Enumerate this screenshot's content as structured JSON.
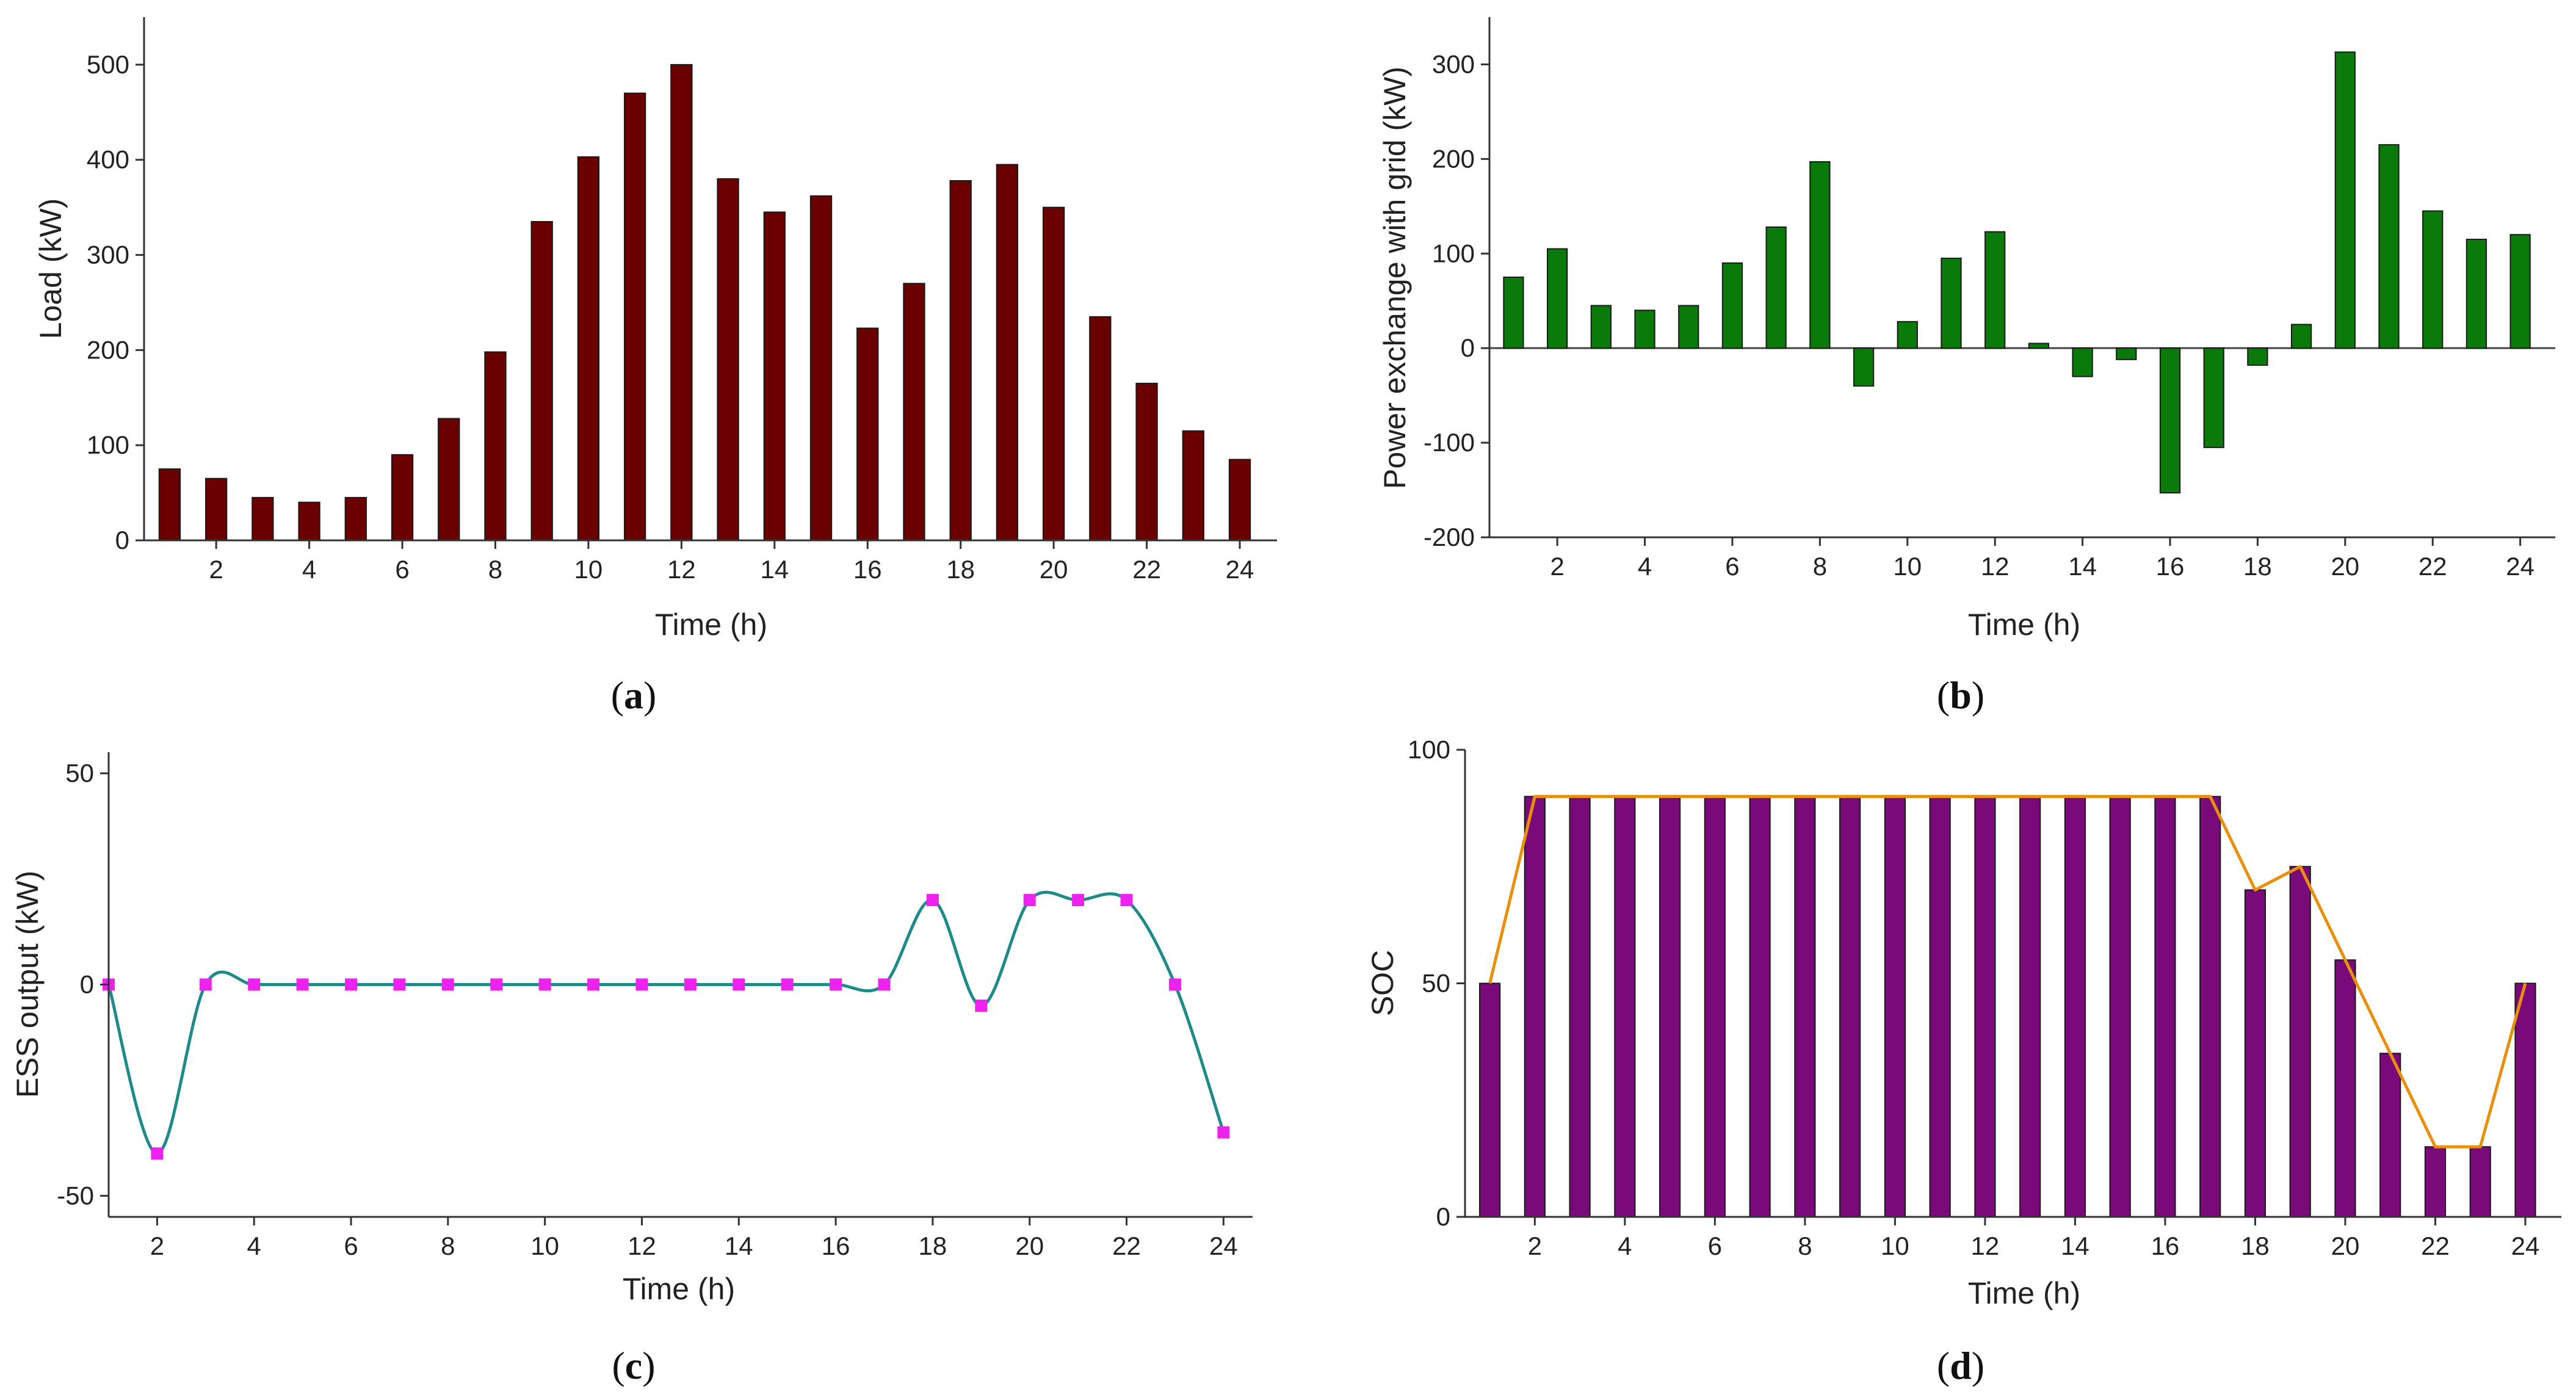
{
  "chart_data": [
    {
      "id": "a",
      "type": "bar",
      "caption_letter": "a",
      "title": "",
      "xlabel": "Time (h)",
      "ylabel": "Load (kW)",
      "categories": [
        1,
        2,
        3,
        4,
        5,
        6,
        7,
        8,
        9,
        10,
        11,
        12,
        13,
        14,
        15,
        16,
        17,
        18,
        19,
        20,
        21,
        22,
        23,
        24
      ],
      "values": [
        75,
        65,
        45,
        40,
        45,
        90,
        128,
        198,
        335,
        403,
        470,
        500,
        380,
        345,
        362,
        223,
        270,
        378,
        395,
        350,
        235,
        165,
        115,
        85
      ],
      "xticks": [
        2,
        4,
        6,
        8,
        10,
        12,
        14,
        16,
        18,
        20,
        22,
        24
      ],
      "yticks": [
        0,
        100,
        200,
        300,
        400,
        500
      ],
      "ylim": [
        0,
        550
      ],
      "colors": {
        "bar": "#6b0000",
        "axis": "#333333"
      }
    },
    {
      "id": "b",
      "type": "bar",
      "caption_letter": "b",
      "title": "",
      "xlabel": "Time (h)",
      "ylabel": "Power exchange with grid (kW)",
      "categories": [
        1,
        2,
        3,
        4,
        5,
        6,
        7,
        8,
        9,
        10,
        11,
        12,
        13,
        14,
        15,
        16,
        17,
        18,
        19,
        20,
        21,
        22,
        23,
        24
      ],
      "values": [
        75,
        105,
        45,
        40,
        45,
        90,
        128,
        197,
        -40,
        28,
        95,
        123,
        5,
        -30,
        -12,
        -153,
        -105,
        -18,
        25,
        313,
        215,
        145,
        115,
        120
      ],
      "xticks": [
        2,
        4,
        6,
        8,
        10,
        12,
        14,
        16,
        18,
        20,
        22,
        24
      ],
      "yticks": [
        -200,
        -100,
        0,
        100,
        200,
        300
      ],
      "ylim": [
        -200,
        350
      ],
      "colors": {
        "bar": "#0a7a0a",
        "axis": "#333333"
      }
    },
    {
      "id": "c",
      "type": "line",
      "caption_letter": "c",
      "title": "",
      "xlabel": "Time (h)",
      "ylabel": "ESS output (kW)",
      "x": [
        1,
        2,
        3,
        4,
        5,
        6,
        7,
        8,
        9,
        10,
        11,
        12,
        13,
        14,
        15,
        16,
        17,
        18,
        19,
        20,
        21,
        22,
        23,
        24
      ],
      "values": [
        0,
        -40,
        0,
        0,
        0,
        0,
        0,
        0,
        0,
        0,
        0,
        0,
        0,
        0,
        0,
        0,
        0,
        20,
        -5,
        20,
        20,
        20,
        0,
        -35
      ],
      "xticks": [
        2,
        4,
        6,
        8,
        10,
        12,
        14,
        16,
        18,
        20,
        22,
        24
      ],
      "yticks": [
        -50,
        0,
        50
      ],
      "xlim": [
        1,
        24.6
      ],
      "ylim": [
        -55,
        55
      ],
      "colors": {
        "line": "#1e8a8a",
        "marker": "#ee22ee",
        "axis": "#333333"
      }
    },
    {
      "id": "d",
      "type": "bar",
      "caption_letter": "d",
      "title": "",
      "xlabel": "Time (h)",
      "ylabel": "SOC",
      "categories": [
        1,
        2,
        3,
        4,
        5,
        6,
        7,
        8,
        9,
        10,
        11,
        12,
        13,
        14,
        15,
        16,
        17,
        18,
        19,
        20,
        21,
        22,
        23,
        24
      ],
      "values": [
        50,
        90,
        90,
        90,
        90,
        90,
        90,
        90,
        90,
        90,
        90,
        90,
        90,
        90,
        90,
        90,
        90,
        70,
        75,
        55,
        35,
        15,
        15,
        50
      ],
      "overlay_line": true,
      "xticks": [
        2,
        4,
        6,
        8,
        10,
        12,
        14,
        16,
        18,
        20,
        22,
        24
      ],
      "yticks": [
        0,
        50,
        100
      ],
      "ylim": [
        0,
        100
      ],
      "colors": {
        "bar": "#7a0a7a",
        "line": "#e8900c",
        "axis": "#333333"
      }
    }
  ]
}
